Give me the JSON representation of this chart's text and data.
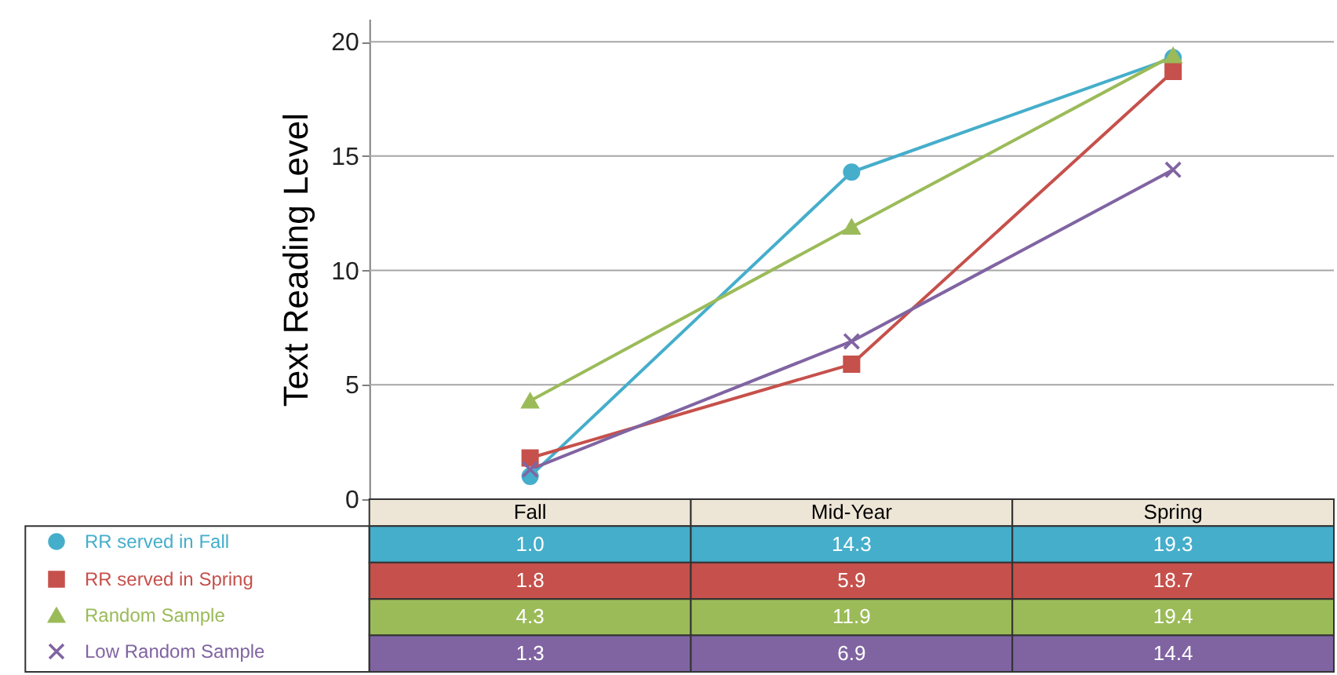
{
  "chart_data": {
    "type": "line",
    "ylabel": "Text Reading Level",
    "categories": [
      "Fall",
      "Mid-Year",
      "Spring"
    ],
    "series": [
      {
        "name": "RR served in Fall",
        "color": "#45aecb",
        "marker": "circle",
        "values": [
          1.0,
          14.3,
          19.3
        ],
        "value_labels": [
          "1.0",
          "14.3",
          "19.3"
        ]
      },
      {
        "name": "RR served in Spring",
        "color": "#c6504b",
        "marker": "square",
        "values": [
          1.8,
          5.9,
          18.7
        ],
        "value_labels": [
          "1.8",
          "5.9",
          "18.7"
        ]
      },
      {
        "name": "Random Sample",
        "color": "#9bbb59",
        "marker": "triangle",
        "values": [
          4.3,
          11.9,
          19.4
        ],
        "value_labels": [
          "4.3",
          "11.9",
          "19.4"
        ]
      },
      {
        "name": "Low Random Sample",
        "color": "#8064a2",
        "marker": "cross",
        "values": [
          1.3,
          6.9,
          14.4
        ],
        "value_labels": [
          "1.3",
          "6.9",
          "14.4"
        ]
      }
    ],
    "ylim": [
      0,
      21
    ],
    "yticks": [
      0,
      5,
      10,
      15,
      20
    ],
    "grid": "y",
    "legend": "bottom left"
  }
}
